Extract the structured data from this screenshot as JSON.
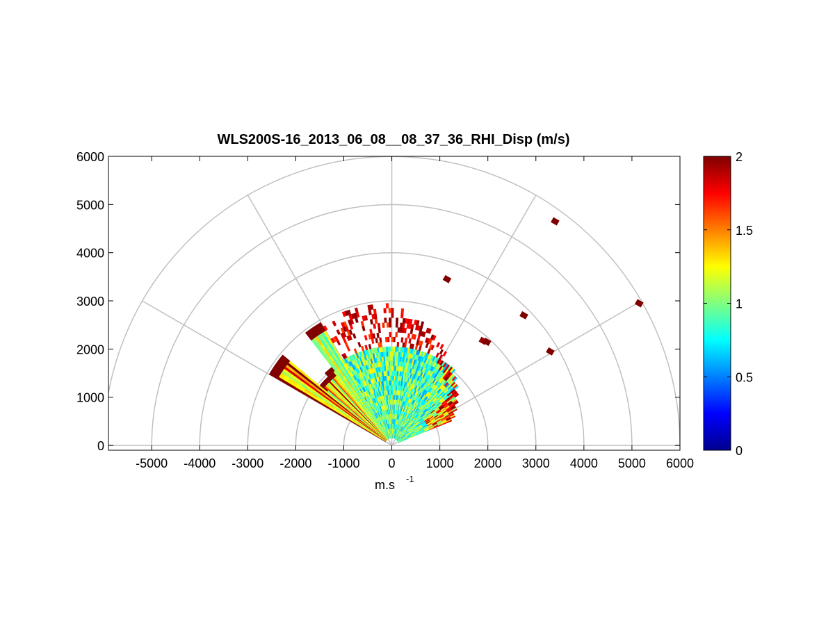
{
  "chart_data": {
    "type": "heatmap",
    "subtype": "polar-rhi",
    "title": "WLS200S-16_2013_06_08__08_37_36_RHI_Disp (m/s)",
    "xlabel": "m.s",
    "xlabel_sup": "-1",
    "ylabel": "",
    "xlim": [
      -5900,
      6000
    ],
    "ylim": [
      -100,
      6000
    ],
    "x_ticks": [
      -5000,
      -4000,
      -3000,
      -2000,
      -1000,
      0,
      1000,
      2000,
      3000,
      4000,
      5000,
      6000
    ],
    "x_tick_labels": [
      "-5000",
      "-4000",
      "-3000",
      "-2000",
      "-1000",
      "0",
      "1000",
      "2000",
      "3000",
      "4000",
      "5000",
      "6000"
    ],
    "y_ticks": [
      0,
      1000,
      2000,
      3000,
      4000,
      5000,
      6000
    ],
    "y_tick_labels": [
      "0",
      "1000",
      "2000",
      "3000",
      "4000",
      "5000",
      "6000"
    ],
    "polar_rings": [
      1000,
      2000,
      3000,
      4000,
      5000,
      6000
    ],
    "polar_spokes_deg": [
      0,
      30,
      60,
      90,
      120,
      150,
      180
    ],
    "colorbar": {
      "min": 0,
      "max": 2,
      "ticks": [
        0,
        0.5,
        1,
        1.5,
        2
      ],
      "tick_labels": [
        "0",
        "0.5",
        "1",
        "1.5",
        "2"
      ],
      "colormap": "jet"
    },
    "scan": {
      "elevation_min_deg": 22,
      "elevation_max_deg": 150,
      "max_range_m": 2900,
      "dense_range_m": 2000
    },
    "outliers": [
      {
        "x": 3400,
        "y": 4650,
        "v": 2.0
      },
      {
        "x": 5150,
        "y": 2950,
        "v": 2.0
      },
      {
        "x": 3300,
        "y": 1950,
        "v": 2.0
      },
      {
        "x": 2750,
        "y": 2700,
        "v": 2.0
      },
      {
        "x": 1150,
        "y": 3450,
        "v": 2.0
      },
      {
        "x": 1900,
        "y": 2170,
        "v": 1.95
      },
      {
        "x": 1980,
        "y": 2150,
        "v": 2.0
      }
    ]
  }
}
